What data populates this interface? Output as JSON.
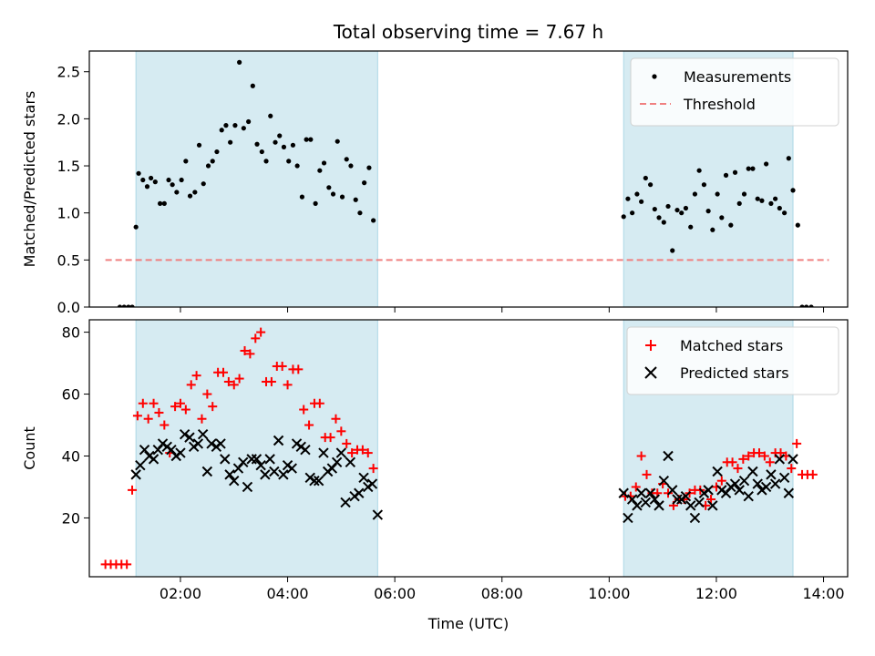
{
  "chart_data": {
    "type": "scatter",
    "title": "Total observing time = 7.67 h",
    "xlabel": "Time (UTC)",
    "x_unit": "hours UTC",
    "xlim": [
      0.3,
      14.45
    ],
    "x_ticks": [
      {
        "value": 2,
        "label": "02:00"
      },
      {
        "value": 4,
        "label": "04:00"
      },
      {
        "value": 6,
        "label": "06:00"
      },
      {
        "value": 8,
        "label": "08:00"
      },
      {
        "value": 10,
        "label": "10:00"
      },
      {
        "value": 12,
        "label": "12:00"
      },
      {
        "value": 14,
        "label": "14:00"
      }
    ],
    "shaded_spans": [
      [
        1.17,
        5.68
      ],
      [
        10.27,
        13.43
      ]
    ],
    "shade_color": "#add8e6",
    "panels": [
      {
        "id": "ratio",
        "ylabel": "Matched/Predicted stars",
        "ylim": [
          0,
          2.72
        ],
        "y_ticks": [
          0.0,
          0.5,
          1.0,
          1.5,
          2.0,
          2.5
        ],
        "y_tick_labels": [
          "0.0",
          "0.5",
          "1.0",
          "1.5",
          "2.0",
          "2.5"
        ],
        "legend_position": "upper right",
        "series": [
          {
            "name": "Measurements",
            "marker": "dot",
            "color": "#000000",
            "x": [
              0.87,
              0.95,
              1.03,
              1.1,
              1.17,
              1.22,
              1.3,
              1.38,
              1.45,
              1.53,
              1.62,
              1.7,
              1.78,
              1.85,
              1.93,
              2.02,
              2.1,
              2.18,
              2.27,
              2.35,
              2.43,
              2.52,
              2.6,
              2.68,
              2.77,
              2.85,
              2.93,
              3.02,
              3.1,
              3.18,
              3.27,
              3.35,
              3.43,
              3.52,
              3.6,
              3.68,
              3.77,
              3.85,
              3.93,
              4.02,
              4.1,
              4.18,
              4.27,
              4.35,
              4.43,
              4.52,
              4.6,
              4.68,
              4.77,
              4.85,
              4.93,
              5.02,
              5.1,
              5.18,
              5.27,
              5.35,
              5.43,
              5.52,
              5.6,
              5.68,
              10.27,
              10.35,
              10.43,
              10.52,
              10.6,
              10.68,
              10.77,
              10.85,
              10.93,
              11.02,
              11.1,
              11.18,
              11.27,
              11.35,
              11.43,
              11.52,
              11.6,
              11.68,
              11.77,
              11.85,
              11.93,
              12.02,
              12.1,
              12.18,
              12.27,
              12.35,
              12.43,
              12.52,
              12.6,
              12.68,
              12.77,
              12.85,
              12.93,
              13.02,
              13.1,
              13.18,
              13.27,
              13.35,
              13.43,
              13.52,
              13.6,
              13.68,
              13.77
            ],
            "y": [
              0.0,
              0.0,
              0.0,
              0.0,
              0.85,
              1.42,
              1.35,
              1.28,
              1.37,
              1.33,
              1.1,
              1.1,
              1.35,
              1.3,
              1.22,
              1.35,
              1.55,
              1.18,
              1.22,
              1.72,
              1.31,
              1.5,
              1.55,
              1.65,
              1.88,
              1.93,
              1.75,
              1.93,
              2.6,
              1.9,
              1.97,
              2.35,
              1.73,
              1.65,
              1.55,
              2.03,
              1.75,
              1.82,
              1.7,
              1.55,
              1.72,
              1.5,
              1.17,
              1.78,
              1.78,
              1.1,
              1.45,
              1.53,
              1.27,
              1.2,
              1.76,
              1.17,
              1.57,
              1.5,
              1.14,
              1.0,
              1.32,
              1.48,
              0.92,
              null,
              0.96,
              1.15,
              1.0,
              1.2,
              1.12,
              1.37,
              1.3,
              1.04,
              0.95,
              0.9,
              1.07,
              0.6,
              1.03,
              1.0,
              1.05,
              0.85,
              1.2,
              1.45,
              1.3,
              1.02,
              0.82,
              1.2,
              0.95,
              1.4,
              0.87,
              1.43,
              1.1,
              1.2,
              1.47,
              1.47,
              1.15,
              1.13,
              1.52,
              1.1,
              1.15,
              1.05,
              1.0,
              1.58,
              1.24,
              0.87,
              0.0,
              0.0,
              0.0
            ]
          },
          {
            "name": "Threshold",
            "style": "dashed",
            "color": "#f08080",
            "x": [
              0.6,
              14.1
            ],
            "y": [
              0.5,
              0.5
            ]
          }
        ]
      },
      {
        "id": "counts",
        "ylabel": "Count",
        "ylim": [
          1,
          84
        ],
        "y_ticks": [
          20,
          40,
          60,
          80
        ],
        "y_tick_labels": [
          "20",
          "40",
          "60",
          "80"
        ],
        "legend_position": "upper right",
        "series": [
          {
            "name": "Matched stars",
            "marker": "plus",
            "color": "#ff0000",
            "x": [
              0.6,
              0.7,
              0.8,
              0.9,
              1.0,
              1.1,
              1.2,
              1.3,
              1.4,
              1.5,
              1.6,
              1.7,
              1.8,
              1.9,
              2.0,
              2.1,
              2.2,
              2.3,
              2.4,
              2.5,
              2.6,
              2.7,
              2.8,
              2.9,
              3.0,
              3.1,
              3.2,
              3.3,
              3.4,
              3.5,
              3.6,
              3.7,
              3.8,
              3.9,
              4.0,
              4.1,
              4.2,
              4.3,
              4.4,
              4.5,
              4.6,
              4.7,
              4.8,
              4.9,
              5.0,
              5.1,
              5.2,
              5.3,
              5.4,
              5.5,
              5.6,
              10.3,
              10.4,
              10.5,
              10.6,
              10.7,
              10.8,
              10.9,
              11.0,
              11.1,
              11.2,
              11.3,
              11.4,
              11.5,
              11.6,
              11.7,
              11.8,
              11.9,
              12.0,
              12.1,
              12.2,
              12.3,
              12.4,
              12.5,
              12.6,
              12.7,
              12.8,
              12.9,
              13.0,
              13.1,
              13.2,
              13.3,
              13.4,
              13.5,
              13.6,
              13.7,
              13.8
            ],
            "y": [
              5,
              5,
              5,
              5,
              5,
              29,
              53,
              57,
              52,
              57,
              54,
              50,
              41,
              56,
              57,
              55,
              63,
              66,
              52,
              60,
              56,
              67,
              67,
              64,
              63,
              65,
              74,
              73,
              78,
              80,
              64,
              64,
              69,
              69,
              63,
              68,
              68,
              55,
              50,
              57,
              57,
              46,
              46,
              52,
              48,
              44,
              41,
              42,
              42,
              41,
              36,
              27,
              27,
              30,
              40,
              34,
              28,
              28,
              31,
              28,
              24,
              26,
              26,
              28,
              29,
              29,
              24,
              26,
              30,
              32,
              38,
              38,
              36,
              39,
              40,
              41,
              41,
              40,
              38,
              41,
              41,
              40,
              36,
              44,
              34,
              34,
              34
            ],
            "note": "some x positions approximated"
          },
          {
            "name": "Predicted stars",
            "marker": "x",
            "color": "#000000",
            "x": [
              1.17,
              1.25,
              1.33,
              1.42,
              1.5,
              1.58,
              1.67,
              1.75,
              1.83,
              1.92,
              2.0,
              2.08,
              2.17,
              2.25,
              2.33,
              2.42,
              2.5,
              2.58,
              2.67,
              2.75,
              2.83,
              2.92,
              3.0,
              3.08,
              3.17,
              3.25,
              3.33,
              3.42,
              3.5,
              3.58,
              3.67,
              3.75,
              3.83,
              3.92,
              4.0,
              4.08,
              4.17,
              4.25,
              4.33,
              4.42,
              4.5,
              4.58,
              4.67,
              4.75,
              4.83,
              4.92,
              5.0,
              5.08,
              5.17,
              5.25,
              5.33,
              5.42,
              5.5,
              5.58,
              5.68,
              10.27,
              10.35,
              10.43,
              10.52,
              10.6,
              10.68,
              10.77,
              10.85,
              10.93,
              11.02,
              11.1,
              11.18,
              11.27,
              11.35,
              11.43,
              11.52,
              11.6,
              11.68,
              11.77,
              11.85,
              11.93,
              12.02,
              12.1,
              12.18,
              12.27,
              12.35,
              12.43,
              12.52,
              12.6,
              12.68,
              12.77,
              12.85,
              12.93,
              13.02,
              13.1,
              13.18,
              13.27,
              13.35,
              13.43
            ],
            "y": [
              34,
              37,
              42,
              40,
              39,
              42,
              44,
              43,
              42,
              40,
              41,
              47,
              46,
              43,
              44,
              47,
              35,
              44,
              43,
              44,
              39,
              34,
              32,
              36,
              38,
              30,
              39,
              39,
              37,
              34,
              39,
              35,
              45,
              34,
              37,
              36,
              44,
              43,
              42,
              33,
              32,
              32,
              41,
              35,
              36,
              38,
              41,
              25,
              38,
              27,
              28,
              33,
              30,
              31,
              21,
              28,
              20,
              26,
              24,
              28,
              25,
              28,
              26,
              24,
              32,
              40,
              29,
              26,
              26,
              27,
              24,
              20,
              25,
              28,
              29,
              24,
              35,
              29,
              28,
              30,
              31,
              29,
              32,
              27,
              35,
              31,
              29,
              30,
              34,
              31,
              39,
              33,
              28,
              39
            ]
          }
        ]
      }
    ]
  }
}
